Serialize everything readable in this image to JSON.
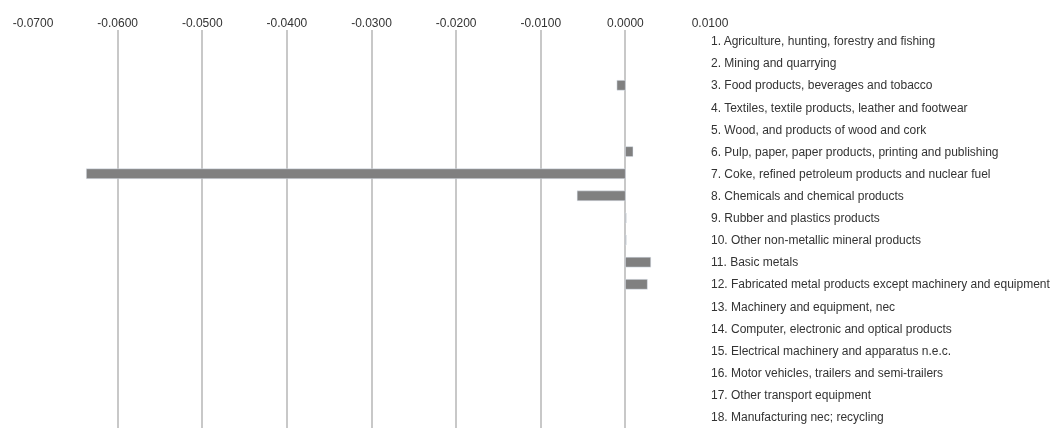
{
  "chart_data": {
    "type": "bar",
    "orientation": "horizontal",
    "categories": [
      "1. Agriculture, hunting, forestry and fishing",
      "2. Mining and quarrying",
      "3. Food products, beverages and tobacco",
      "4. Textiles, textile products, leather and footwear",
      "5. Wood, and products of wood and cork",
      "6. Pulp, paper, paper products, printing and publishing",
      "7. Coke, refined petroleum products and nuclear fuel",
      "8. Chemicals and chemical products",
      "9. Rubber and plastics products",
      "10. Other non-metallic mineral products",
      "11. Basic metals",
      "12. Fabricated metal products except machinery and equipment",
      "13. Machinery and equipment, nec",
      "14. Computer, electronic and optical products",
      "15. Electrical machinery and apparatus n.e.c.",
      "16. Motor vehicles, trailers and semi-trailers",
      "17. Other transport equipment",
      "18. Manufacturing nec; recycling"
    ],
    "values": [
      null,
      null,
      -0.001,
      null,
      null,
      0.0009,
      -0.0637,
      -0.0057,
      0.0001,
      0.0001,
      0.003,
      0.0026,
      null,
      null,
      null,
      null,
      null,
      null
    ],
    "color": "#808080",
    "xlim": [
      -0.07,
      0.01
    ],
    "xticks": [
      {
        "value": -0.07,
        "label": "-0.0700"
      },
      {
        "value": -0.06,
        "label": "-0.0600"
      },
      {
        "value": -0.05,
        "label": "-0.0500"
      },
      {
        "value": -0.04,
        "label": "-0.0400"
      },
      {
        "value": -0.03,
        "label": "-0.0300"
      },
      {
        "value": -0.02,
        "label": "-0.0200"
      },
      {
        "value": -0.01,
        "label": "-0.0100"
      },
      {
        "value": 0,
        "label": "0.0000"
      },
      {
        "value": 0.01,
        "label": "0.0100"
      }
    ],
    "grid": "x"
  }
}
